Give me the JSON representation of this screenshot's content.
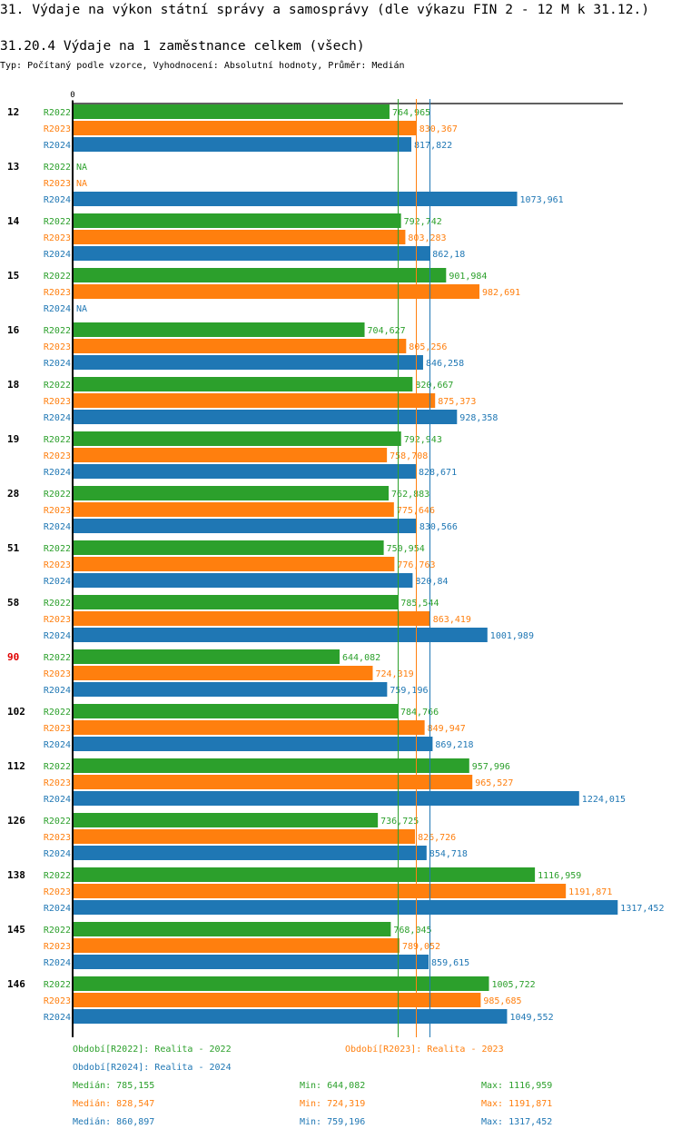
{
  "page": {
    "title": "31. Výdaje na výkon státní správy a samosprávy (dle výkazu FIN 2 - 12 M k 31.12.)",
    "subtitle_heading": "31.20.4 Výdaje na 1 zaměstnance celkem (všech)",
    "meta": "Typ: Počítaný podle vzorce, Vyhodnocení: Absolutní hodnoty, Průměr: Medián"
  },
  "colors": {
    "R2022": "#2ca02c",
    "R2023": "#ff7f0e",
    "R2024": "#1f77b4",
    "highlight_group": "#e00000",
    "axis": "#000000"
  },
  "chart_data": {
    "type": "bar",
    "orientation": "horizontal",
    "title": "31.20.4 Výdaje na 1 zaměstnance celkem (všech)",
    "xlabel": "",
    "ylabel": "",
    "x_tick_labels": [
      "0"
    ],
    "xlim": [
      0,
      1330
    ],
    "grid": false,
    "decimal_separator": ",",
    "na_label": "NA",
    "series_names": [
      "R2022",
      "R2023",
      "R2024"
    ],
    "categories": [
      "12",
      "13",
      "14",
      "15",
      "16",
      "18",
      "19",
      "28",
      "51",
      "58",
      "90",
      "102",
      "112",
      "126",
      "138",
      "145",
      "146"
    ],
    "highlighted_category": "90",
    "series": [
      {
        "name": "R2022",
        "values": [
          764.965,
          null,
          792.742,
          901.984,
          704.627,
          820.667,
          792.943,
          762.883,
          750.954,
          785.544,
          644.082,
          784.766,
          957.996,
          736.725,
          1116.959,
          768.045,
          1005.722
        ]
      },
      {
        "name": "R2023",
        "values": [
          830.367,
          null,
          803.283,
          982.691,
          805.256,
          875.373,
          758.708,
          775.646,
          776.763,
          863.419,
          724.319,
          849.947,
          965.527,
          826.726,
          1191.871,
          789.052,
          985.685
        ]
      },
      {
        "name": "R2024",
        "values": [
          817.822,
          1073.961,
          862.18,
          null,
          846.258,
          928.358,
          828.671,
          830.566,
          820.84,
          1001.989,
          759.196,
          869.218,
          1224.015,
          854.718,
          1317.452,
          859.615,
          1049.552
        ]
      }
    ],
    "reference_lines": [
      {
        "series": "R2022",
        "type": "median",
        "value": 785.155
      },
      {
        "series": "R2023",
        "type": "median",
        "value": 828.547
      },
      {
        "series": "R2024",
        "type": "median",
        "value": 860.897
      }
    ],
    "legend": {
      "placement": "bottom",
      "entries": [
        {
          "series": "R2022",
          "label": "Období[R2022]: Realita - 2022"
        },
        {
          "series": "R2023",
          "label": "Období[R2023]: Realita - 2023"
        },
        {
          "series": "R2024",
          "label": "Období[R2024]: Realita - 2024"
        }
      ],
      "stats": [
        {
          "series": "R2022",
          "median": "Medián: 785,155",
          "min": "Min: 644,082",
          "max": "Max: 1116,959"
        },
        {
          "series": "R2023",
          "median": "Medián: 828,547",
          "min": "Min: 724,319",
          "max": "Max: 1191,871"
        },
        {
          "series": "R2024",
          "median": "Medián: 860,897",
          "min": "Min: 759,196",
          "max": "Max: 1317,452"
        }
      ]
    }
  }
}
